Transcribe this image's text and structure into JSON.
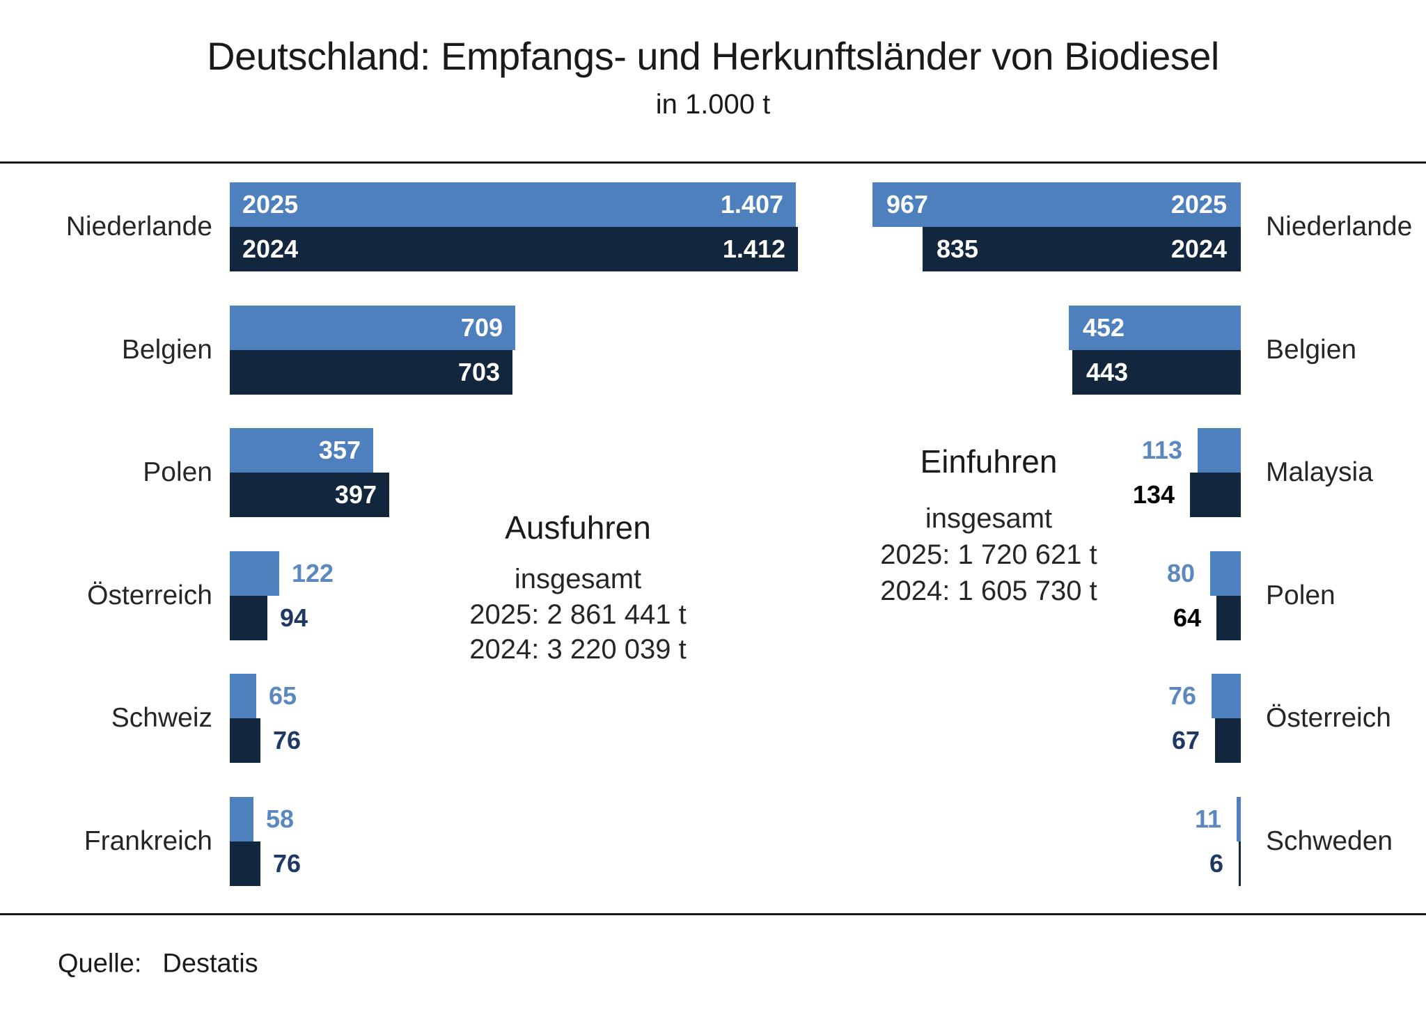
{
  "page": {
    "title": "Deutschland: Empfangs- und Herkunftsländer von Biodiesel",
    "subtitle": "in 1.000 t",
    "source_label": "Quelle:",
    "source_value": "Destatis"
  },
  "colors": {
    "bar_2025": "#4d80bd",
    "bar_2024": "#12263e",
    "label_2025_outside": "#5b88c0",
    "label_2024_outside": "#1f3864",
    "label_inside": "#ffffff",
    "rule": "#1a1a1a",
    "text": "#262626"
  },
  "chart_data": [
    {
      "id": "exports",
      "type": "bar",
      "orientation": "horizontal",
      "anchor": "left",
      "title": "Ausfuhren",
      "subtitle": "insgesamt",
      "totals": [
        "2025: 2 861 441 t",
        "2024: 3 220 039 t"
      ],
      "unit": "1.000 t",
      "categories": [
        "Niederlande",
        "Belgien",
        "Polen",
        "Österreich",
        "Schweiz",
        "Frankreich"
      ],
      "series": [
        {
          "name": "2025",
          "values": [
            1407,
            709,
            357,
            122,
            65,
            58
          ],
          "labels": [
            "1.407",
            "709",
            "357",
            "122",
            "65",
            "58"
          ]
        },
        {
          "name": "2024",
          "values": [
            1412,
            703,
            397,
            94,
            76,
            76
          ],
          "labels": [
            "1.412",
            "703",
            "397",
            "94",
            "76",
            "76"
          ]
        }
      ],
      "legend": "year labels shown inside first bar pair",
      "grid": false
    },
    {
      "id": "imports",
      "type": "bar",
      "orientation": "horizontal",
      "anchor": "right",
      "title": "Einfuhren",
      "subtitle": "insgesamt",
      "totals": [
        "2025: 1 720 621 t",
        "2024: 1 605 730 t"
      ],
      "unit": "1.000 t",
      "categories": [
        "Niederlande",
        "Belgien",
        "Malaysia",
        "Polen",
        "Österreich",
        "Schweden"
      ],
      "series": [
        {
          "name": "2025",
          "values": [
            967,
            452,
            113,
            80,
            76,
            11
          ],
          "labels": [
            "967",
            "452",
            "113",
            "80",
            "76",
            "11"
          ]
        },
        {
          "name": "2024",
          "values": [
            835,
            443,
            134,
            64,
            67,
            6
          ],
          "labels": [
            "835",
            "443",
            "134",
            "64",
            "67",
            "6"
          ]
        }
      ],
      "label_color_overrides": {
        "2024": {
          "Malaysia": "#000000",
          "Polen": "#000000"
        }
      },
      "legend": "year labels shown inside first bar pair",
      "grid": false
    }
  ]
}
